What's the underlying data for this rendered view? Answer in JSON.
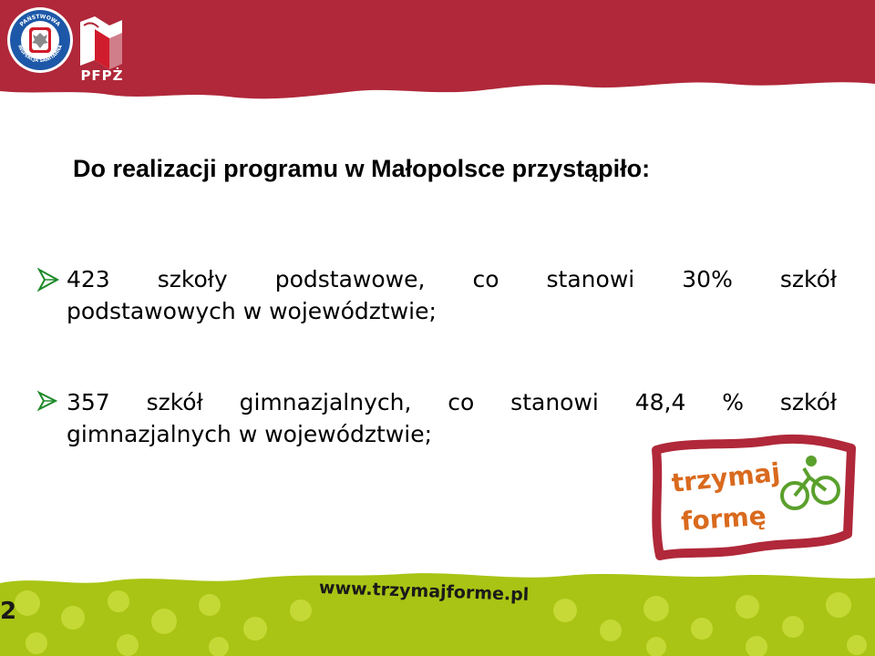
{
  "header": {
    "logo_pis_text": "PAŃSTWOWA INSPEKCJA SANITARNA",
    "logo_pfpz_label": "PFPŻ"
  },
  "title": "Do realizacji programu w Małopolsce przystąpiło:",
  "bullets": [
    {
      "line1": "423 szkoły podstawowe, co stanowi 30% szkół",
      "line2": "podstawowych w województwie;"
    },
    {
      "line1": "357 szkół gimnazjalnych, co stanowi 48,4 % szkół",
      "line2": "gimnazjalnych w województwie;"
    }
  ],
  "brand": {
    "line1": "trzymaj",
    "line2": "formę"
  },
  "footer": {
    "website": "www.trzymajforme.pl",
    "slide_number": "2"
  },
  "colors": {
    "banner_red": "#b0283a",
    "bottom_green": "#a9c414",
    "bullet_green": "#1e8a2a",
    "brand_orange": "#d96a1e",
    "brand_green": "#5aa02c"
  },
  "icons": [
    "state-sanitary-inspection-emblem-icon",
    "pfpz-logo-icon",
    "arrowhead-bullet-icon",
    "cyclist-icon"
  ]
}
